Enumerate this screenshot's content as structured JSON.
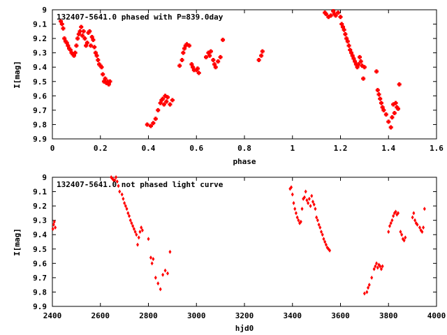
{
  "chart_data": [
    {
      "type": "scatter",
      "title": "132407-5641.0 phased with P=839.0day",
      "xlabel": "phase",
      "ylabel": "I[mag]",
      "xlim": [
        0,
        1.6
      ],
      "ylim": [
        9,
        9.9
      ],
      "y_inverted": true,
      "grid": false,
      "marker_color": "#ff0000",
      "xticks": [
        "0",
        "0.2",
        "0.4",
        "0.6",
        "0.8",
        "1",
        "1.2",
        "1.4",
        "1.6"
      ],
      "yticks": [
        "9",
        "9.1",
        "9.2",
        "9.3",
        "9.4",
        "9.5",
        "9.6",
        "9.7",
        "9.8",
        "9.9"
      ],
      "series": [
        {
          "x": [
            0.035,
            0.04,
            0.045,
            0.05,
            0.055,
            0.06,
            0.065,
            0.07,
            0.075,
            0.08,
            0.085,
            0.09,
            0.095,
            0.1,
            0.105,
            0.11,
            0.115,
            0.12,
            0.125,
            0.13,
            0.135,
            0.14,
            0.145,
            0.15,
            0.155,
            0.16,
            0.165,
            0.17,
            0.175,
            0.18,
            0.185,
            0.19,
            0.195,
            0.2,
            0.205,
            0.21,
            0.215,
            0.22,
            0.225,
            0.23,
            0.235,
            0.24,
            0.395,
            0.41,
            0.42,
            0.43,
            0.44,
            0.45,
            0.455,
            0.46,
            0.465,
            0.47,
            0.475,
            0.48,
            0.49,
            0.5,
            0.53,
            0.54,
            0.545,
            0.55,
            0.555,
            0.56,
            0.57,
            0.58,
            0.585,
            0.59,
            0.6,
            0.605,
            0.61,
            0.64,
            0.65,
            0.655,
            0.66,
            0.67,
            0.675,
            0.68,
            0.69,
            0.7,
            0.71,
            0.86,
            0.87,
            0.875,
            1.135,
            1.14,
            1.15,
            1.16,
            1.17,
            1.175,
            1.18,
            1.19,
            1.2,
            1.205,
            1.21,
            1.215,
            1.22,
            1.225,
            1.23,
            1.235,
            1.24,
            1.245,
            1.25,
            1.255,
            1.26,
            1.265,
            1.27,
            1.275,
            1.28,
            1.285,
            1.29,
            1.295,
            1.3,
            1.35,
            1.355,
            1.36,
            1.365,
            1.37,
            1.375,
            1.38,
            1.39,
            1.4,
            1.41,
            1.415,
            1.42,
            1.425,
            1.43,
            1.435,
            1.44,
            1.445
          ],
          "y": [
            9.08,
            9.1,
            9.13,
            9.2,
            9.22,
            9.23,
            9.25,
            9.27,
            9.28,
            9.3,
            9.31,
            9.32,
            9.3,
            9.25,
            9.2,
            9.17,
            9.15,
            9.12,
            9.18,
            9.15,
            9.2,
            9.25,
            9.23,
            9.16,
            9.15,
            9.25,
            9.19,
            9.21,
            9.26,
            9.3,
            9.32,
            9.35,
            9.38,
            9.39,
            9.4,
            9.45,
            9.5,
            9.48,
            9.51,
            9.5,
            9.52,
            9.5,
            9.8,
            9.81,
            9.79,
            9.76,
            9.7,
            9.65,
            9.63,
            9.62,
            9.66,
            9.6,
            9.64,
            9.61,
            9.66,
            9.63,
            9.39,
            9.35,
            9.3,
            9.27,
            9.25,
            9.24,
            9.25,
            9.38,
            9.4,
            9.42,
            9.42,
            9.41,
            9.44,
            9.33,
            9.3,
            9.32,
            9.29,
            9.35,
            9.38,
            9.4,
            9.36,
            9.33,
            9.21,
            9.35,
            9.32,
            9.29,
            9.02,
            9.03,
            9.05,
            9.04,
            9.01,
            9.03,
            9.04,
            9.02,
            9.05,
            9.1,
            9.12,
            9.14,
            9.17,
            9.2,
            9.22,
            9.25,
            9.28,
            9.3,
            9.32,
            9.34,
            9.36,
            9.38,
            9.4,
            9.38,
            9.33,
            9.36,
            9.39,
            9.48,
            9.4,
            9.43,
            9.56,
            9.59,
            9.62,
            9.65,
            9.68,
            9.7,
            9.73,
            9.78,
            9.82,
            9.75,
            9.66,
            9.72,
            9.65,
            9.68,
            9.69,
            9.52
          ]
        }
      ]
    },
    {
      "type": "scatter",
      "title": "132407-5641.0 not phased light curve",
      "xlabel": "hjd0",
      "ylabel": "I[mag]",
      "xlim": [
        2400,
        4000
      ],
      "ylim": [
        9,
        9.9
      ],
      "y_inverted": true,
      "grid": false,
      "marker_color": "#ff0000",
      "xticks": [
        "2400",
        "2600",
        "2800",
        "3000",
        "3200",
        "3400",
        "3600",
        "3800",
        "4000"
      ],
      "yticks": [
        "9",
        "9.1",
        "9.2",
        "9.3",
        "9.4",
        "9.5",
        "9.6",
        "9.7",
        "9.8",
        "9.9"
      ],
      "series": [
        {
          "x": [
            2402,
            2405,
            2408,
            2412,
            2645,
            2650,
            2655,
            2660,
            2665,
            2670,
            2675,
            2680,
            2690,
            2695,
            2700,
            2705,
            2710,
            2715,
            2720,
            2725,
            2730,
            2735,
            2740,
            2745,
            2750,
            2755,
            2760,
            2765,
            2770,
            2775,
            2800,
            2810,
            2815,
            2820,
            2830,
            2840,
            2850,
            2860,
            2870,
            2880,
            2890,
            3390,
            3395,
            3400,
            3405,
            3410,
            3415,
            3420,
            3425,
            3430,
            3435,
            3440,
            3445,
            3450,
            3455,
            3460,
            3465,
            3470,
            3475,
            3480,
            3485,
            3490,
            3495,
            3500,
            3505,
            3510,
            3515,
            3520,
            3525,
            3530,
            3535,
            3540,
            3545,
            3550,
            3555,
            3700,
            3710,
            3715,
            3720,
            3730,
            3740,
            3745,
            3750,
            3755,
            3760,
            3765,
            3770,
            3775,
            3800,
            3805,
            3810,
            3815,
            3820,
            3825,
            3830,
            3835,
            3840,
            3850,
            3855,
            3860,
            3865,
            3870,
            3900,
            3905,
            3910,
            3915,
            3920,
            3930,
            3935,
            3940,
            3945,
            3950
          ],
          "y": [
            9.36,
            9.33,
            9.31,
            9.35,
            9.0,
            9.01,
            9.02,
            9.02,
            9.0,
            9.03,
            9.06,
            9.1,
            9.12,
            9.15,
            9.18,
            9.2,
            9.22,
            9.25,
            9.27,
            9.3,
            9.32,
            9.34,
            9.36,
            9.38,
            9.4,
            9.47,
            9.42,
            9.38,
            9.35,
            9.37,
            9.43,
            9.56,
            9.6,
            9.57,
            9.7,
            9.74,
            9.78,
            9.68,
            9.65,
            9.67,
            9.52,
            9.08,
            9.07,
            9.12,
            9.18,
            9.22,
            9.25,
            9.28,
            9.3,
            9.32,
            9.31,
            9.22,
            9.15,
            9.14,
            9.1,
            9.16,
            9.18,
            9.15,
            9.2,
            9.13,
            9.17,
            9.19,
            9.22,
            9.28,
            9.3,
            9.33,
            9.35,
            9.38,
            9.4,
            9.43,
            9.45,
            9.47,
            9.49,
            9.5,
            9.51,
            9.81,
            9.8,
            9.77,
            9.75,
            9.7,
            9.64,
            9.62,
            9.6,
            9.63,
            9.61,
            9.62,
            9.64,
            9.62,
            9.38,
            9.34,
            9.32,
            9.3,
            9.27,
            9.25,
            9.24,
            9.26,
            9.25,
            9.38,
            9.4,
            9.43,
            9.44,
            9.42,
            9.28,
            9.25,
            9.3,
            9.32,
            9.33,
            9.35,
            9.37,
            9.38,
            9.35,
            9.22
          ]
        }
      ]
    }
  ]
}
